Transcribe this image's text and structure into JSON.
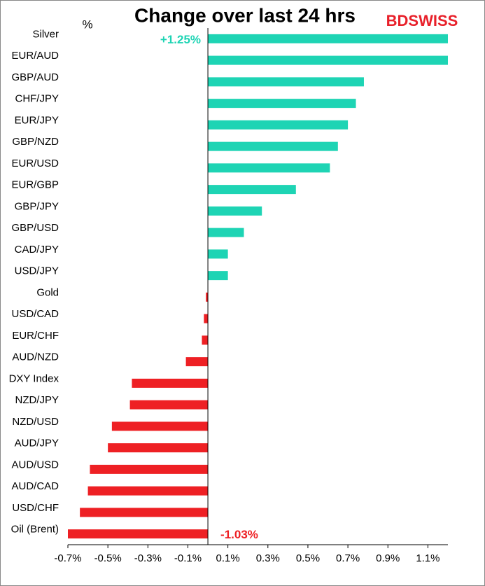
{
  "chart_data": {
    "type": "bar",
    "orientation": "horizontal",
    "title": "Change over last 24 hrs",
    "brand": "BDSWISS",
    "unit_label": "%",
    "categories": [
      "Silver",
      "EUR/AUD",
      "GBP/AUD",
      "CHF/JPY",
      "EUR/JPY",
      "GBP/NZD",
      "EUR/USD",
      "EUR/GBP",
      "GBP/JPY",
      "GBP/USD",
      "CAD/JPY",
      "USD/JPY",
      "Gold",
      "USD/CAD",
      "EUR/CHF",
      "AUD/NZD",
      "DXY Index",
      "NZD/JPY",
      "NZD/USD",
      "AUD/JPY",
      "AUD/USD",
      "AUD/CAD",
      "USD/CHF",
      "Oil (Brent)"
    ],
    "values": [
      1.25,
      1.2,
      0.78,
      0.74,
      0.7,
      0.65,
      0.61,
      0.44,
      0.27,
      0.18,
      0.1,
      0.1,
      -0.01,
      -0.02,
      -0.03,
      -0.11,
      -0.38,
      -0.39,
      -0.48,
      -0.5,
      -0.59,
      -0.6,
      -0.64,
      -1.03
    ],
    "value_labels": [
      "+1.25%",
      null,
      null,
      null,
      null,
      null,
      null,
      null,
      null,
      null,
      null,
      null,
      null,
      null,
      null,
      null,
      null,
      null,
      null,
      null,
      null,
      null,
      null,
      "-1.03%"
    ],
    "positive_color": "#1ed4b4",
    "negative_color": "#ee2024",
    "xlim": [
      -0.7,
      1.2
    ],
    "xticks": [
      {
        "value": -0.7,
        "label": "-0.7%"
      },
      {
        "value": -0.5,
        "label": "-0.5%"
      },
      {
        "value": -0.3,
        "label": "-0.3%"
      },
      {
        "value": -0.1,
        "label": "-0.1%"
      },
      {
        "value": 0.1,
        "label": "0.1%"
      },
      {
        "value": 0.3,
        "label": "0.3%"
      },
      {
        "value": 0.5,
        "label": "0.5%"
      },
      {
        "value": 0.7,
        "label": "0.7%"
      },
      {
        "value": 0.9,
        "label": "0.9%"
      },
      {
        "value": 1.1,
        "label": "1.1%"
      }
    ],
    "grid": false
  }
}
